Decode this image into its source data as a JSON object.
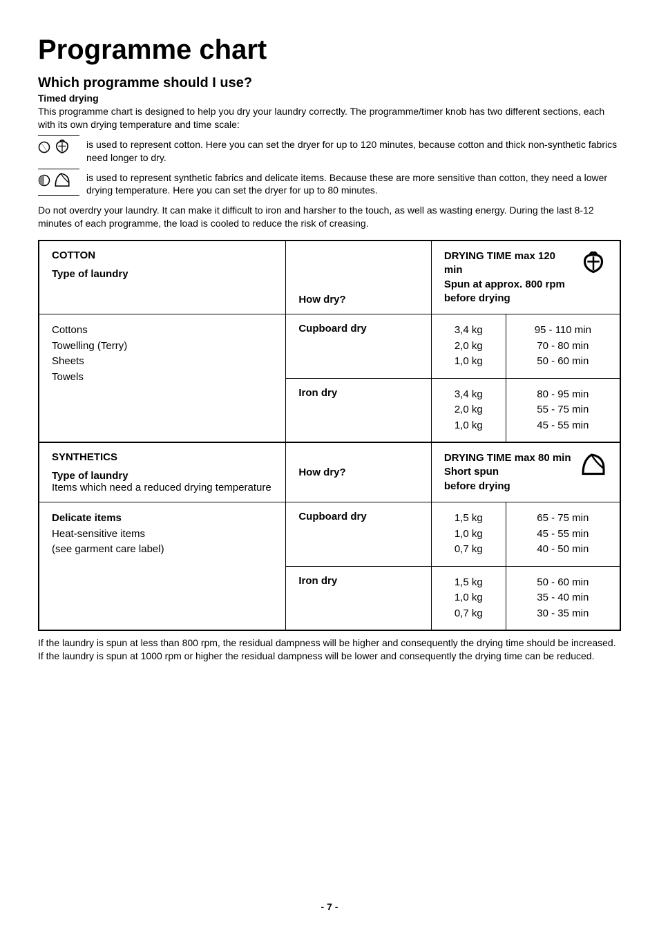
{
  "title": "Programme chart",
  "subtitle": "Which programme should I use?",
  "subhead": "Timed drying",
  "intro": "This programme chart is designed to help you dry your laundry correctly. The programme/timer knob has two different sections, each with its own drying temperature and time scale:",
  "icon_rows": [
    {
      "text": "is used to represent cotton. Here you can set the dryer for up to 120 minutes, because cotton and thick non-synthetic fabrics need longer to dry."
    },
    {
      "text": "is used to represent synthetic fabrics and delicate items. Because these are more sensitive than cotton, they need a lower drying temperature. Here you can set the dryer for up to 80 minutes."
    }
  ],
  "overdry_note": "Do not overdry your laundry. It can make it difficult to iron and harsher to the touch, as well as wasting energy. During the last 8-12 minutes of each programme, the load is cooled to reduce the risk of creasing.",
  "cotton": {
    "label": "COTTON",
    "type_label": "Type of laundry",
    "howdry_label": "How dry?",
    "time_header_1": "DRYING TIME max 120 min",
    "time_header_2": "Spun at approx. 800 rpm",
    "time_header_3": "before drying",
    "laundry_list": "Cottons\nTowelling (Terry)\nSheets\nTowels",
    "rows": [
      {
        "dryness": "Cupboard dry",
        "weights": "3,4 kg\n2,0 kg\n1,0 kg",
        "times": "95 - 110 min\n70 - 80 min\n50 - 60 min"
      },
      {
        "dryness": "Iron dry",
        "weights": "3,4 kg\n2,0 kg\n1,0 kg",
        "times": "80 - 95 min\n55 - 75 min\n45 - 55 min"
      }
    ]
  },
  "synthetics": {
    "label": "SYNTHETICS",
    "type_label": "Type of laundry",
    "type_sub": "Items which need a reduced drying temperature",
    "howdry_label": "How dry?",
    "time_header_1": "DRYING TIME max 80 min",
    "time_header_2": "Short spun",
    "time_header_3": "before drying",
    "laundry_list": "Delicate items\nHeat-sensitive items\n(see garment care label)",
    "rows": [
      {
        "dryness": "Cupboard dry",
        "weights": "1,5 kg\n1,0 kg\n0,7 kg",
        "times": "65 - 75 min\n45 - 55 min\n40 - 50 min"
      },
      {
        "dryness": "Iron dry",
        "weights": "1,5 kg\n1,0 kg\n0,7 kg",
        "times": "50 - 60 min\n35 - 40 min\n30 - 35 min"
      }
    ]
  },
  "footer_note": "If the laundry is spun at less than 800 rpm, the residual dampness will be higher and consequently the drying time should be increased. If the laundry is spun at 1000 rpm or higher the residual dampness will be lower and consequently the drying time can be reduced.",
  "page_number": "- 7 -"
}
